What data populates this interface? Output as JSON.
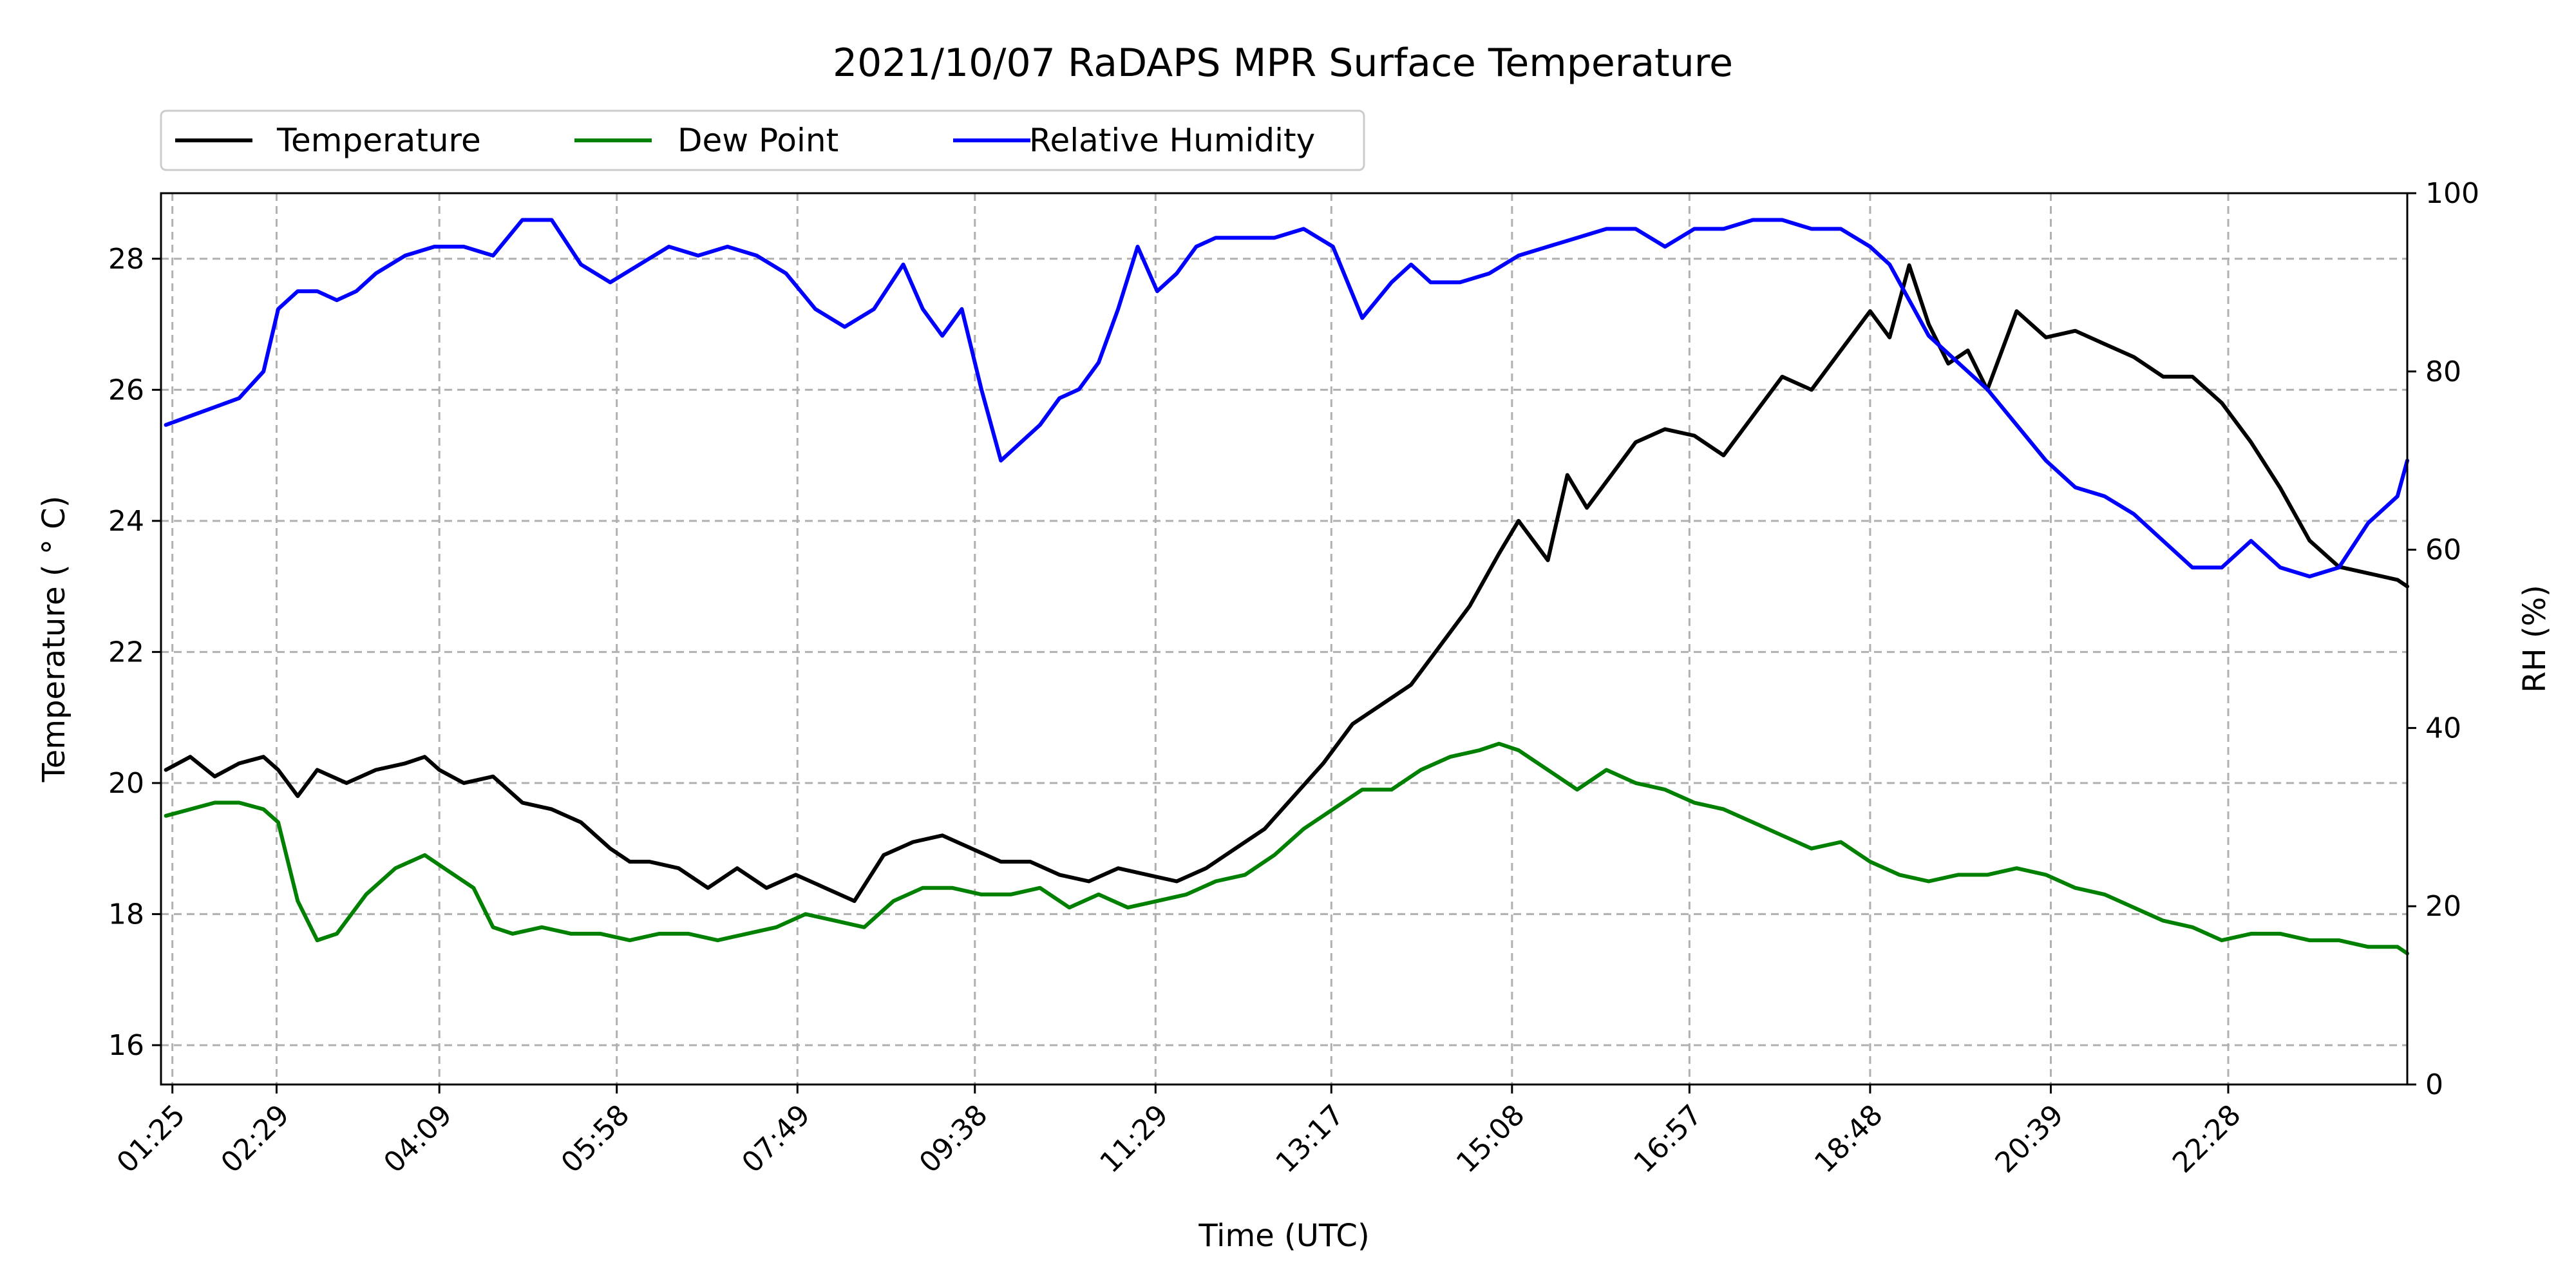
{
  "chart_data": {
    "type": "line",
    "title": "2021/10/07 RaDAPS MPR Surface Temperature",
    "xlabel": "Time (UTC)",
    "ylabel_left": "Temperature ($^\\circ$C)",
    "ylabel_left_display": "Temperature ( ° C)",
    "ylabel_right": "RH (%)",
    "x_tick_labels": [
      "01:25",
      "02:29",
      "04:09",
      "05:58",
      "07:49",
      "09:38",
      "11:29",
      "13:17",
      "15:08",
      "16:57",
      "18:48",
      "20:39",
      "22:28"
    ],
    "x_tick_hours": [
      1.4167,
      2.4833,
      4.15,
      5.9667,
      7.8167,
      9.6333,
      11.4833,
      13.2833,
      15.1333,
      16.95,
      18.8,
      20.65,
      22.4667
    ],
    "xlim_hours": [
      1.3,
      24.3
    ],
    "ylim_left": [
      15.4,
      29.0
    ],
    "yticks_left": [
      16,
      18,
      20,
      22,
      24,
      26,
      28
    ],
    "ylim_right": [
      0,
      100
    ],
    "yticks_right": [
      0,
      20,
      40,
      60,
      80,
      100
    ],
    "grid": true,
    "legend_placement": "above-left",
    "colors": {
      "temperature": "#000000",
      "dew_point": "#008000",
      "relative_humidity": "#0000ff",
      "grid": "#b0b0b0"
    },
    "series": [
      {
        "name": "Temperature",
        "axis": "left",
        "color": "#000000",
        "x": [
          1.35,
          1.6,
          1.85,
          2.1,
          2.35,
          2.5,
          2.7,
          2.9,
          3.2,
          3.5,
          3.8,
          4.0,
          4.15,
          4.4,
          4.7,
          5.0,
          5.3,
          5.6,
          5.9,
          6.1,
          6.3,
          6.6,
          6.9,
          7.2,
          7.5,
          7.8,
          8.1,
          8.4,
          8.7,
          9.0,
          9.3,
          9.6,
          9.9,
          10.2,
          10.5,
          10.8,
          11.1,
          11.4,
          11.7,
          12.0,
          12.3,
          12.6,
          12.9,
          13.2,
          13.5,
          13.8,
          14.1,
          14.4,
          14.7,
          15.0,
          15.2,
          15.5,
          15.7,
          15.9,
          16.1,
          16.4,
          16.7,
          17.0,
          17.3,
          17.6,
          17.9,
          18.2,
          18.5,
          18.8,
          19.0,
          19.2,
          19.4,
          19.6,
          19.8,
          20.0,
          20.3,
          20.6,
          20.9,
          21.2,
          21.5,
          21.8,
          22.1,
          22.4,
          22.7,
          23.0,
          23.3,
          23.6,
          23.9,
          24.2,
          24.3
        ],
        "values": [
          20.2,
          20.4,
          20.1,
          20.3,
          20.4,
          20.2,
          19.8,
          20.2,
          20.0,
          20.2,
          20.3,
          20.4,
          20.2,
          20.0,
          20.1,
          19.7,
          19.6,
          19.4,
          19.0,
          18.8,
          18.8,
          18.7,
          18.4,
          18.7,
          18.4,
          18.6,
          18.4,
          18.2,
          18.9,
          19.1,
          19.2,
          19.0,
          18.8,
          18.8,
          18.6,
          18.5,
          18.7,
          18.6,
          18.5,
          18.7,
          19.0,
          19.3,
          19.8,
          20.3,
          20.9,
          21.2,
          21.5,
          22.1,
          22.7,
          23.5,
          24.0,
          23.4,
          24.7,
          24.2,
          24.6,
          25.2,
          25.4,
          25.3,
          25.0,
          25.6,
          26.2,
          26.0,
          26.6,
          27.2,
          26.8,
          27.9,
          27.0,
          26.4,
          26.6,
          26.0,
          27.2,
          26.8,
          26.9,
          26.7,
          26.5,
          26.2,
          26.2,
          25.8,
          25.2,
          24.5,
          23.7,
          23.3,
          23.2,
          23.1,
          23.0
        ]
      },
      {
        "name": "Dew Point",
        "axis": "left",
        "color": "#008000",
        "x": [
          1.35,
          1.6,
          1.85,
          2.1,
          2.35,
          2.5,
          2.7,
          2.9,
          3.1,
          3.4,
          3.7,
          4.0,
          4.2,
          4.5,
          4.7,
          4.9,
          5.2,
          5.5,
          5.8,
          6.1,
          6.4,
          6.7,
          7.0,
          7.3,
          7.6,
          7.9,
          8.2,
          8.5,
          8.8,
          9.1,
          9.4,
          9.7,
          10.0,
          10.3,
          10.6,
          10.9,
          11.2,
          11.5,
          11.8,
          12.1,
          12.4,
          12.7,
          13.0,
          13.3,
          13.6,
          13.9,
          14.2,
          14.5,
          14.8,
          15.0,
          15.2,
          15.5,
          15.8,
          16.1,
          16.4,
          16.7,
          17.0,
          17.3,
          17.6,
          17.9,
          18.2,
          18.5,
          18.8,
          19.1,
          19.4,
          19.7,
          20.0,
          20.3,
          20.6,
          20.9,
          21.2,
          21.5,
          21.8,
          22.1,
          22.4,
          22.7,
          23.0,
          23.3,
          23.6,
          23.9,
          24.2,
          24.3
        ],
        "values": [
          19.5,
          19.6,
          19.7,
          19.7,
          19.6,
          19.4,
          18.2,
          17.6,
          17.7,
          18.3,
          18.7,
          18.9,
          18.7,
          18.4,
          17.8,
          17.7,
          17.8,
          17.7,
          17.7,
          17.6,
          17.7,
          17.7,
          17.6,
          17.7,
          17.8,
          18.0,
          17.9,
          17.8,
          18.2,
          18.4,
          18.4,
          18.3,
          18.3,
          18.4,
          18.1,
          18.3,
          18.1,
          18.2,
          18.3,
          18.5,
          18.6,
          18.9,
          19.3,
          19.6,
          19.9,
          19.9,
          20.2,
          20.4,
          20.5,
          20.6,
          20.5,
          20.2,
          19.9,
          20.2,
          20.0,
          19.9,
          19.7,
          19.6,
          19.4,
          19.2,
          19.0,
          19.1,
          18.8,
          18.6,
          18.5,
          18.6,
          18.6,
          18.7,
          18.6,
          18.4,
          18.3,
          18.1,
          17.9,
          17.8,
          17.6,
          17.7,
          17.7,
          17.6,
          17.6,
          17.5,
          17.5,
          17.4
        ]
      },
      {
        "name": "Relative Humidity",
        "axis": "right",
        "color": "#0000ff",
        "x": [
          1.35,
          1.6,
          1.85,
          2.1,
          2.35,
          2.5,
          2.7,
          2.9,
          3.1,
          3.3,
          3.5,
          3.8,
          4.1,
          4.4,
          4.7,
          5.0,
          5.3,
          5.6,
          5.9,
          6.2,
          6.5,
          6.8,
          7.1,
          7.4,
          7.7,
          8.0,
          8.3,
          8.6,
          8.9,
          9.1,
          9.3,
          9.5,
          9.7,
          9.9,
          10.1,
          10.3,
          10.5,
          10.7,
          10.9,
          11.1,
          11.3,
          11.5,
          11.7,
          11.9,
          12.1,
          12.4,
          12.7,
          13.0,
          13.3,
          13.6,
          13.9,
          14.1,
          14.3,
          14.6,
          14.9,
          15.2,
          15.5,
          15.8,
          16.1,
          16.4,
          16.7,
          17.0,
          17.3,
          17.6,
          17.9,
          18.2,
          18.5,
          18.8,
          19.0,
          19.2,
          19.4,
          19.6,
          19.8,
          20.0,
          20.3,
          20.6,
          20.9,
          21.2,
          21.5,
          21.8,
          22.1,
          22.4,
          22.7,
          23.0,
          23.3,
          23.6,
          23.9,
          24.2,
          24.3
        ],
        "values": [
          74,
          75,
          76,
          77,
          80,
          87,
          89,
          89,
          88,
          89,
          91,
          93,
          94,
          94,
          93,
          97,
          97,
          92,
          90,
          92,
          94,
          93,
          94,
          93,
          91,
          87,
          85,
          87,
          92,
          87,
          84,
          87,
          78,
          70,
          72,
          74,
          77,
          78,
          81,
          87,
          94,
          89,
          91,
          94,
          95,
          95,
          95,
          96,
          94,
          86,
          90,
          92,
          90,
          90,
          91,
          93,
          94,
          95,
          96,
          96,
          94,
          96,
          96,
          97,
          97,
          96,
          96,
          94,
          92,
          88,
          84,
          82,
          80,
          78,
          74,
          70,
          67,
          66,
          64,
          61,
          58,
          58,
          61,
          58,
          57,
          58,
          63,
          66,
          70
        ]
      }
    ]
  }
}
